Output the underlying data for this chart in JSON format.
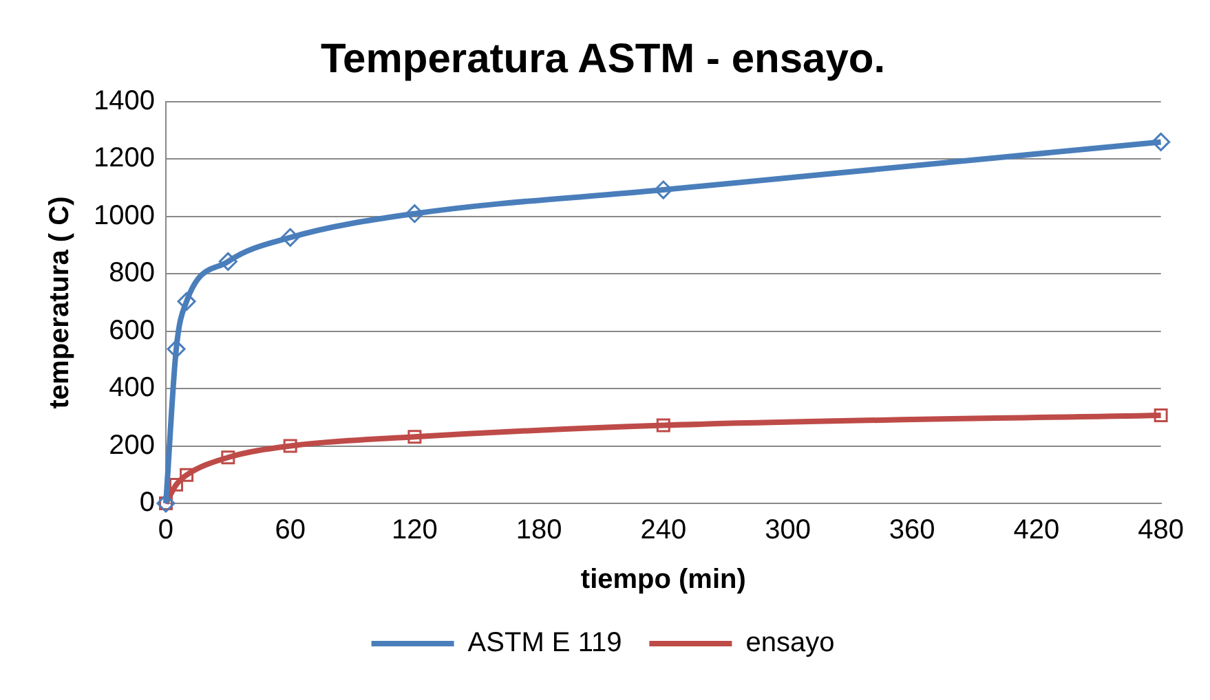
{
  "chart_data": {
    "type": "line",
    "title": "Temperatura ASTM - ensayo.",
    "xlabel": "tiempo (min)",
    "ylabel": "temperatura ( C)",
    "x": [
      0,
      5,
      10,
      30,
      60,
      120,
      240,
      480
    ],
    "series": [
      {
        "name": "ASTM E 119",
        "color": "#4a7ebb",
        "marker": "diamond",
        "values": [
          0,
          538,
          704,
          843,
          927,
          1010,
          1093,
          1260
        ]
      },
      {
        "name": "ensayo",
        "color": "#be4b48",
        "marker": "square",
        "values": [
          0,
          65,
          99,
          160,
          200,
          232,
          272,
          307
        ]
      }
    ],
    "xlim": [
      0,
      480
    ],
    "xticks": [
      0,
      60,
      120,
      180,
      240,
      300,
      360,
      420,
      480
    ],
    "ylim": [
      0,
      1400
    ],
    "yticks": [
      0,
      200,
      400,
      600,
      800,
      1000,
      1200,
      1400
    ],
    "grid": "y",
    "legend": "bottom",
    "line_style": "solid"
  }
}
